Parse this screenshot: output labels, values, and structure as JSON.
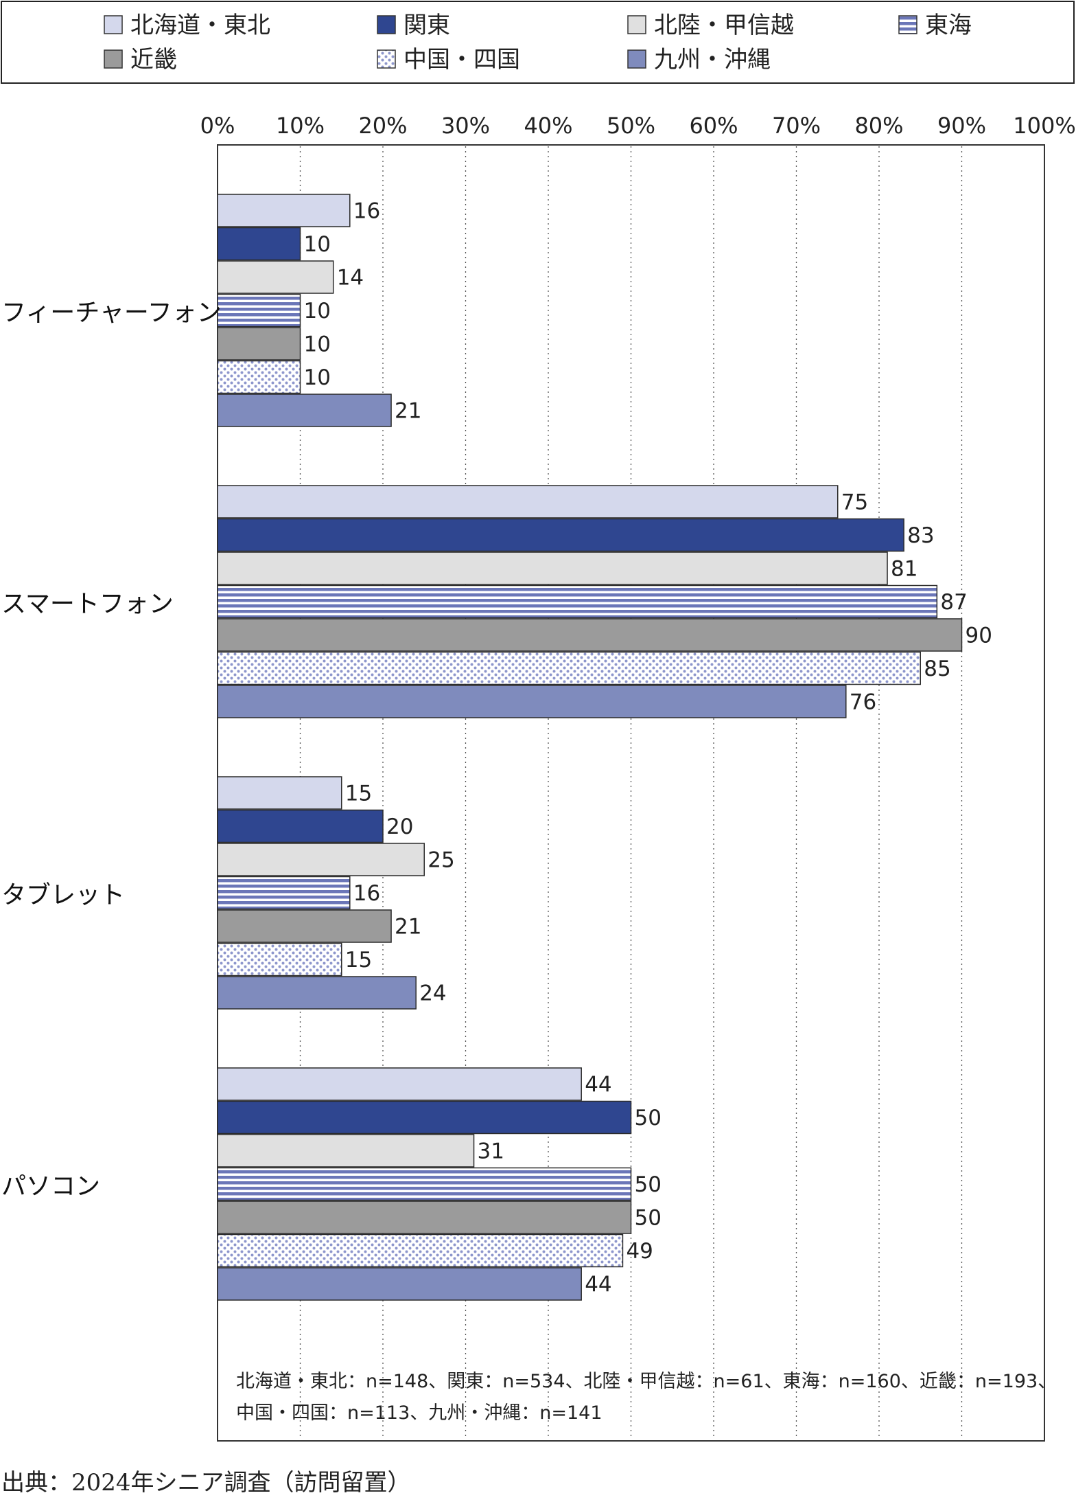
{
  "chart_data": {
    "type": "bar",
    "orientation": "horizontal",
    "categories": [
      "フィーチャーフォン",
      "スマートフォン",
      "タブレット",
      "パソコン"
    ],
    "series": [
      {
        "name": "北海道・東北",
        "color": "#d4d8ec",
        "pattern": "solid",
        "values": [
          16,
          75,
          15,
          44
        ]
      },
      {
        "name": "関東",
        "color": "#2f4690",
        "pattern": "solid",
        "values": [
          10,
          83,
          20,
          50
        ]
      },
      {
        "name": "北陸・甲信越",
        "color": "#e0e0e0",
        "pattern": "solid",
        "values": [
          14,
          81,
          25,
          31
        ]
      },
      {
        "name": "東海",
        "color": "#6b76b8",
        "pattern": "horizontal-stripes",
        "values": [
          10,
          87,
          16,
          50
        ]
      },
      {
        "name": "近畿",
        "color": "#9b9b9b",
        "pattern": "solid",
        "values": [
          10,
          90,
          21,
          50
        ]
      },
      {
        "name": "中国・四国",
        "color": "#8d96cc",
        "pattern": "dots",
        "values": [
          10,
          85,
          15,
          49
        ]
      },
      {
        "name": "九州・沖縄",
        "color": "#7f8bbd",
        "pattern": "solid",
        "values": [
          21,
          76,
          24,
          44
        ]
      }
    ],
    "x_ticks": [
      "0%",
      "10%",
      "20%",
      "30%",
      "40%",
      "50%",
      "60%",
      "70%",
      "80%",
      "90%",
      "100%"
    ],
    "xlim": [
      0,
      100
    ],
    "grid": "vertical dotted",
    "legend_position": "top",
    "note_lines": [
      "北海道・東北：n=148、関東：n=534、北陸・甲信越：n=61、東海：n=160、近畿：n=193、",
      "中国・四国：n=113、九州・沖縄：n=141"
    ],
    "source": "出典：2024年シニア調査（訪問留置）"
  }
}
